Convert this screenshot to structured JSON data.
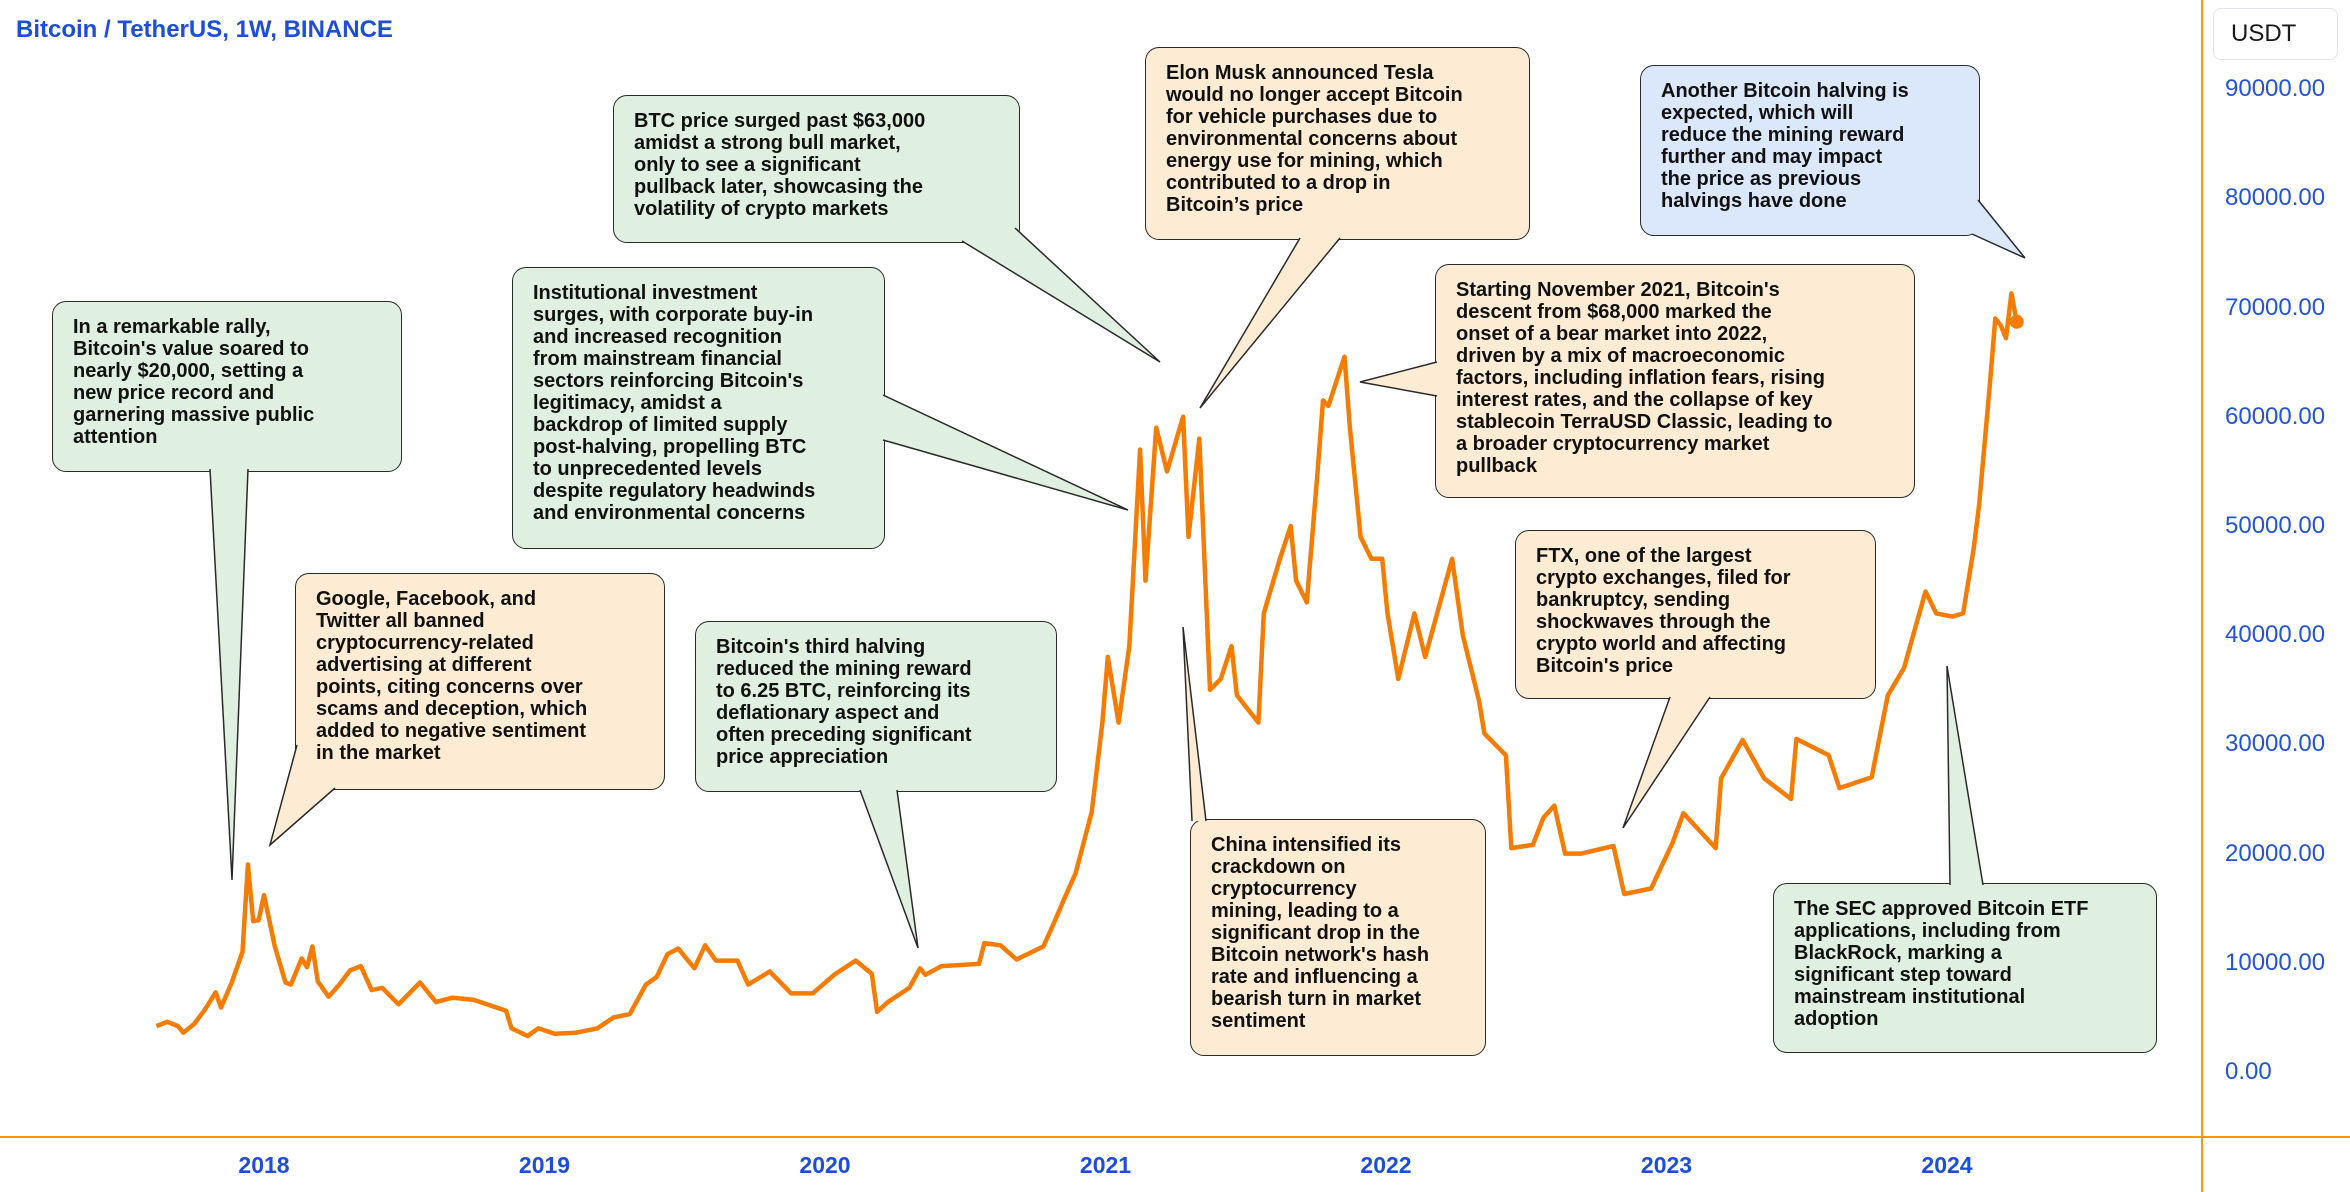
{
  "header": {
    "title": "Bitcoin / TetherUS, 1W, BINANCE",
    "currency": "USDT"
  },
  "colors": {
    "line": "#f57c00",
    "axis": "#ff9800",
    "labels": "#1d4ed8",
    "green_note": "#dff0e1",
    "orange_note": "#fdebd3",
    "blue_note": "#dbe8fb"
  },
  "chart_data": {
    "type": "line",
    "title": "Bitcoin / TetherUS, 1W, BINANCE",
    "ylabel": "USDT",
    "ylim": [
      0,
      90000
    ],
    "y_ticks": [
      "90000.00",
      "80000.00",
      "70000.00",
      "60000.00",
      "50000.00",
      "40000.00",
      "30000.00",
      "20000.00",
      "10000.00",
      "0.00"
    ],
    "x_ticks": [
      "2018",
      "2019",
      "2020",
      "2021",
      "2022",
      "2023",
      "2024"
    ],
    "grid": false,
    "series": [
      {
        "points": [
          [
            "2017-08-14",
            4200
          ],
          [
            "2017-08-28",
            4600
          ],
          [
            "2017-09-11",
            4200
          ],
          [
            "2017-09-18",
            3600
          ],
          [
            "2017-10-02",
            4400
          ],
          [
            "2017-10-16",
            5700
          ],
          [
            "2017-10-30",
            7300
          ],
          [
            "2017-11-06",
            5900
          ],
          [
            "2017-11-20",
            8200
          ],
          [
            "2017-12-04",
            11000
          ],
          [
            "2017-12-11",
            19000
          ],
          [
            "2017-12-18",
            13800
          ],
          [
            "2017-12-25",
            13900
          ],
          [
            "2018-01-01",
            16200
          ],
          [
            "2018-01-15",
            11500
          ],
          [
            "2018-01-29",
            8200
          ],
          [
            "2018-02-05",
            8000
          ],
          [
            "2018-02-19",
            10400
          ],
          [
            "2018-02-26",
            9600
          ],
          [
            "2018-03-05",
            11500
          ],
          [
            "2018-03-12",
            8300
          ],
          [
            "2018-03-26",
            6900
          ],
          [
            "2018-04-09",
            8000
          ],
          [
            "2018-04-23",
            9300
          ],
          [
            "2018-05-07",
            9700
          ],
          [
            "2018-05-21",
            7500
          ],
          [
            "2018-06-04",
            7700
          ],
          [
            "2018-06-25",
            6200
          ],
          [
            "2018-07-23",
            8200
          ],
          [
            "2018-08-13",
            6400
          ],
          [
            "2018-09-03",
            6800
          ],
          [
            "2018-10-01",
            6600
          ],
          [
            "2018-11-12",
            5600
          ],
          [
            "2018-11-19",
            4000
          ],
          [
            "2018-12-10",
            3300
          ],
          [
            "2018-12-24",
            4000
          ],
          [
            "2019-01-14",
            3500
          ],
          [
            "2019-02-11",
            3600
          ],
          [
            "2019-03-11",
            4000
          ],
          [
            "2019-04-01",
            5000
          ],
          [
            "2019-04-22",
            5300
          ],
          [
            "2019-05-13",
            8000
          ],
          [
            "2019-05-27",
            8700
          ],
          [
            "2019-06-10",
            10800
          ],
          [
            "2019-06-24",
            11300
          ],
          [
            "2019-07-15",
            9500
          ],
          [
            "2019-07-29",
            11600
          ],
          [
            "2019-08-12",
            10200
          ],
          [
            "2019-09-09",
            10200
          ],
          [
            "2019-09-23",
            8000
          ],
          [
            "2019-10-21",
            9200
          ],
          [
            "2019-11-18",
            7200
          ],
          [
            "2019-12-16",
            7200
          ],
          [
            "2020-01-13",
            8900
          ],
          [
            "2020-02-10",
            10200
          ],
          [
            "2020-03-02",
            9000
          ],
          [
            "2020-03-09",
            5500
          ],
          [
            "2020-03-23",
            6400
          ],
          [
            "2020-04-20",
            7700
          ],
          [
            "2020-05-04",
            9500
          ],
          [
            "2020-05-11",
            8900
          ],
          [
            "2020-06-01",
            9700
          ],
          [
            "2020-07-20",
            9900
          ],
          [
            "2020-07-27",
            11800
          ],
          [
            "2020-08-17",
            11600
          ],
          [
            "2020-09-07",
            10300
          ],
          [
            "2020-10-12",
            11500
          ],
          [
            "2020-10-26",
            13700
          ],
          [
            "2020-11-09",
            16000
          ],
          [
            "2020-11-23",
            18200
          ],
          [
            "2020-12-14",
            23800
          ],
          [
            "2020-12-28",
            32000
          ],
          [
            "2021-01-04",
            38000
          ],
          [
            "2021-01-18",
            32000
          ],
          [
            "2021-02-01",
            39000
          ],
          [
            "2021-02-15",
            57000
          ],
          [
            "2021-02-22",
            45000
          ],
          [
            "2021-03-08",
            59000
          ],
          [
            "2021-03-22",
            55000
          ],
          [
            "2021-04-12",
            60000
          ],
          [
            "2021-04-19",
            49000
          ],
          [
            "2021-05-03",
            58000
          ],
          [
            "2021-05-17",
            35000
          ],
          [
            "2021-05-31",
            36000
          ],
          [
            "2021-06-14",
            39000
          ],
          [
            "2021-06-21",
            34500
          ],
          [
            "2021-07-19",
            32000
          ],
          [
            "2021-07-26",
            42000
          ],
          [
            "2021-08-16",
            47000
          ],
          [
            "2021-08-30",
            50000
          ],
          [
            "2021-09-06",
            45000
          ],
          [
            "2021-09-20",
            43000
          ],
          [
            "2021-10-04",
            55000
          ],
          [
            "2021-10-11",
            61500
          ],
          [
            "2021-10-18",
            61000
          ],
          [
            "2021-11-08",
            65500
          ],
          [
            "2021-11-15",
            59000
          ],
          [
            "2021-11-29",
            49000
          ],
          [
            "2021-12-13",
            47000
          ],
          [
            "2021-12-27",
            47000
          ],
          [
            "2022-01-03",
            42000
          ],
          [
            "2022-01-17",
            36000
          ],
          [
            "2022-02-07",
            42000
          ],
          [
            "2022-02-21",
            38000
          ],
          [
            "2022-03-28",
            47000
          ],
          [
            "2022-04-11",
            40000
          ],
          [
            "2022-05-02",
            34000
          ],
          [
            "2022-05-09",
            31000
          ],
          [
            "2022-06-06",
            29000
          ],
          [
            "2022-06-13",
            20500
          ],
          [
            "2022-07-11",
            20800
          ],
          [
            "2022-07-25",
            23300
          ],
          [
            "2022-08-08",
            24400
          ],
          [
            "2022-08-22",
            20000
          ],
          [
            "2022-09-12",
            20000
          ],
          [
            "2022-10-24",
            20700
          ],
          [
            "2022-11-07",
            16300
          ],
          [
            "2022-12-12",
            16800
          ],
          [
            "2023-01-09",
            21000
          ],
          [
            "2023-01-23",
            23700
          ],
          [
            "2023-03-06",
            20500
          ],
          [
            "2023-03-13",
            26900
          ],
          [
            "2023-04-10",
            30400
          ],
          [
            "2023-05-08",
            26900
          ],
          [
            "2023-06-12",
            25000
          ],
          [
            "2023-06-19",
            30500
          ],
          [
            "2023-07-31",
            29000
          ],
          [
            "2023-08-14",
            26000
          ],
          [
            "2023-09-25",
            27000
          ],
          [
            "2023-10-16",
            34500
          ],
          [
            "2023-11-06",
            37000
          ],
          [
            "2023-12-04",
            44000
          ],
          [
            "2023-12-18",
            42000
          ],
          [
            "2024-01-08",
            41700
          ],
          [
            "2024-01-22",
            42000
          ],
          [
            "2024-02-05",
            48000
          ],
          [
            "2024-02-12",
            52000
          ],
          [
            "2024-02-26",
            63000
          ],
          [
            "2024-03-04",
            69000
          ],
          [
            "2024-03-11",
            68400
          ],
          [
            "2024-03-18",
            67200
          ],
          [
            "2024-03-25",
            71300
          ],
          [
            "2024-04-01",
            68700
          ]
        ]
      }
    ],
    "last_value": 68700,
    "annotations": [
      {
        "color": "green",
        "text": "In a remarkable rally,\nBitcoin's value soared to\nnearly $20,000, setting a\nnew price record and\ngarnering massive public\nattention"
      },
      {
        "color": "orange",
        "text": "Google, Facebook, and\nTwitter all banned\ncryptocurrency-related\nadvertising at different\npoints, citing concerns over\nscams and deception, which\nadded to negative sentiment\nin the market"
      },
      {
        "color": "green",
        "text": "BTC price surged past $63,000\namidst a strong bull market,\nonly to see a significant\npullback later, showcasing the\nvolatility of crypto markets"
      },
      {
        "color": "green",
        "text": "Institutional investment\nsurges, with corporate buy-in\nand increased recognition\nfrom mainstream financial\nsectors reinforcing Bitcoin's\nlegitimacy, amidst a\nbackdrop of limited supply\npost-halving, propelling BTC\nto unprecedented levels\ndespite regulatory headwinds\nand environmental concerns"
      },
      {
        "color": "orange",
        "text": "Elon Musk announced Tesla\nwould no longer accept Bitcoin\nfor vehicle purchases due to\nenvironmental concerns about\nenergy use for mining, which\ncontributed to a drop in\nBitcoin’s price"
      },
      {
        "color": "blue",
        "text": "Another Bitcoin halving is\nexpected, which will\nreduce the mining reward\nfurther and may impact\nthe price as previous\nhalvings have done"
      },
      {
        "color": "orange",
        "text": "Starting November 2021, Bitcoin's\ndescent from $68,000 marked the\nonset of a bear market into 2022,\ndriven by a mix of macroeconomic\nfactors, including inflation fears, rising\ninterest rates, and the collapse of key\nstablecoin TerraUSD Classic, leading to\na broader cryptocurrency market\npullback"
      },
      {
        "color": "orange",
        "text": "FTX, one of the largest\ncrypto exchanges, filed for\nbankruptcy, sending\nshockwaves through the\ncrypto world and affecting\nBitcoin's price"
      },
      {
        "color": "green",
        "text": "Bitcoin's third halving\nreduced the mining reward\nto 6.25 BTC, reinforcing its\ndeflationary aspect and\noften preceding significant\nprice appreciation"
      },
      {
        "color": "orange",
        "text": "China intensified its\ncrackdown on\ncryptocurrency\nmining, leading to a\nsignificant drop in the\nBitcoin network's hash\nrate and influencing a\nbearish turn in market\nsentiment"
      },
      {
        "color": "green",
        "text": "The SEC approved Bitcoin ETF\napplications, including from\nBlackRock, marking a\nsignificant step toward\nmainstream institutional\nadoption"
      }
    ]
  }
}
